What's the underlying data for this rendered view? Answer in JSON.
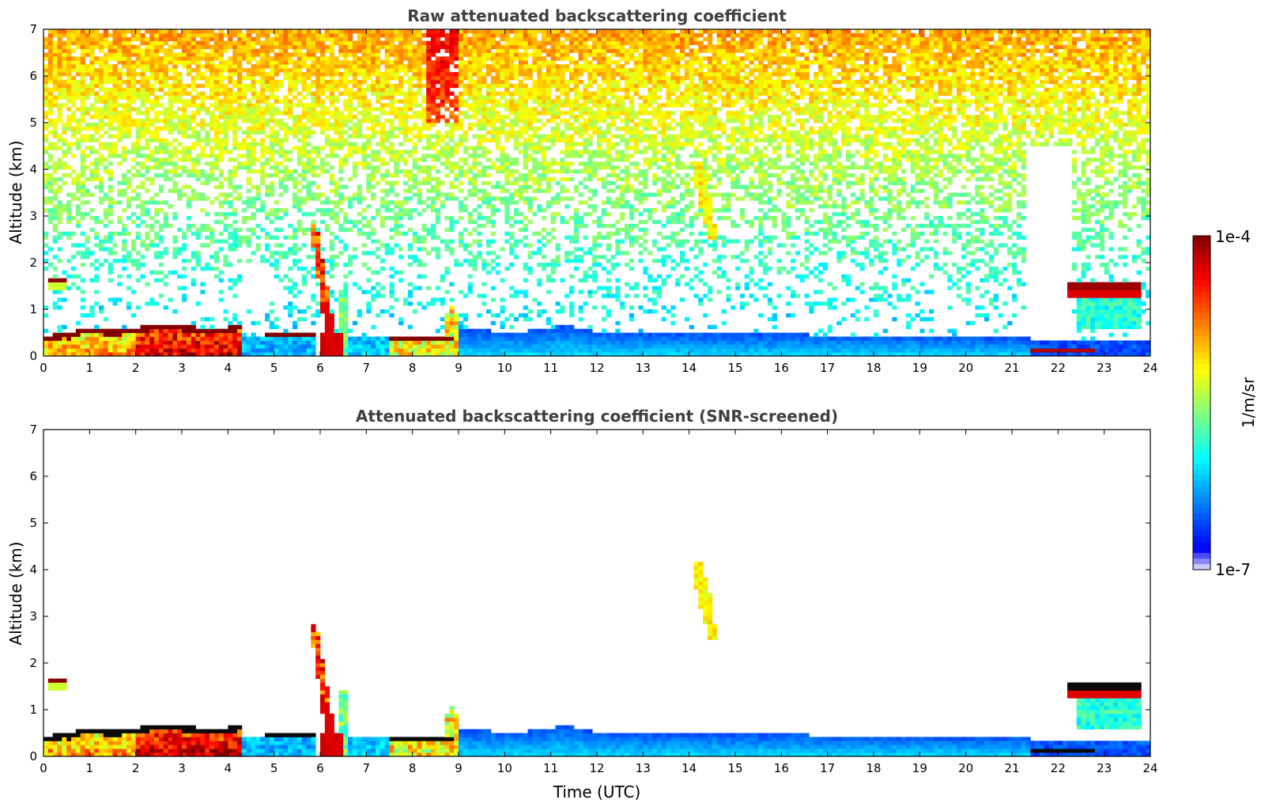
{
  "chart_data": [
    {
      "type": "heatmap",
      "title": "Raw attenuated backscattering coefficient",
      "xlabel": "",
      "ylabel": "Altitude (km)",
      "xlim": [
        0,
        24
      ],
      "ylim": [
        0,
        7
      ],
      "x_ticks": [
        "0",
        "1",
        "2",
        "3",
        "4",
        "5",
        "6",
        "7",
        "8",
        "9",
        "10",
        "11",
        "12",
        "13",
        "14",
        "15",
        "16",
        "17",
        "18",
        "19",
        "20",
        "21",
        "22",
        "23",
        "24"
      ],
      "y_ticks": [
        "0",
        "1",
        "2",
        "3",
        "4",
        "5",
        "6",
        "7"
      ],
      "grid": false,
      "features": [
        {
          "x": [
            0.0,
            4.3
          ],
          "altitude": [
            0.3,
            0.75
          ],
          "level": "high"
        },
        {
          "x": [
            5.9,
            6.4
          ],
          "altitude": [
            0.0,
            2.8
          ],
          "level": "high"
        },
        {
          "x": [
            7.5,
            8.9
          ],
          "altitude": [
            0.3,
            0.45
          ],
          "level": "high"
        },
        {
          "x": [
            14.0,
            14.6
          ],
          "altitude": [
            2.5,
            4.2
          ],
          "level": "medium"
        },
        {
          "x": [
            22.2,
            23.8
          ],
          "altitude": [
            1.2,
            1.65
          ],
          "level": "high"
        },
        {
          "x": [
            21.4,
            22.9
          ],
          "altitude": [
            0.05,
            0.15
          ],
          "level": "high"
        }
      ]
    },
    {
      "type": "heatmap",
      "title": "Attenuated backscattering coefficient (SNR-screened)",
      "xlabel": "Time (UTC)",
      "ylabel": "Altitude (km)",
      "xlim": [
        0,
        24
      ],
      "ylim": [
        0,
        7
      ],
      "x_ticks": [
        "0",
        "1",
        "2",
        "3",
        "4",
        "5",
        "6",
        "7",
        "8",
        "9",
        "10",
        "11",
        "12",
        "13",
        "14",
        "15",
        "16",
        "17",
        "18",
        "19",
        "20",
        "21",
        "22",
        "23",
        "24"
      ],
      "y_ticks": [
        "0",
        "1",
        "2",
        "3",
        "4",
        "5",
        "6",
        "7"
      ],
      "grid": false
    }
  ],
  "colorbar": {
    "label": "1/m/sr",
    "max_label": "1e-4",
    "min_label": "1e-7",
    "scale": "log",
    "range": [
      1e-07,
      0.0001
    ],
    "colormap": "jet"
  }
}
